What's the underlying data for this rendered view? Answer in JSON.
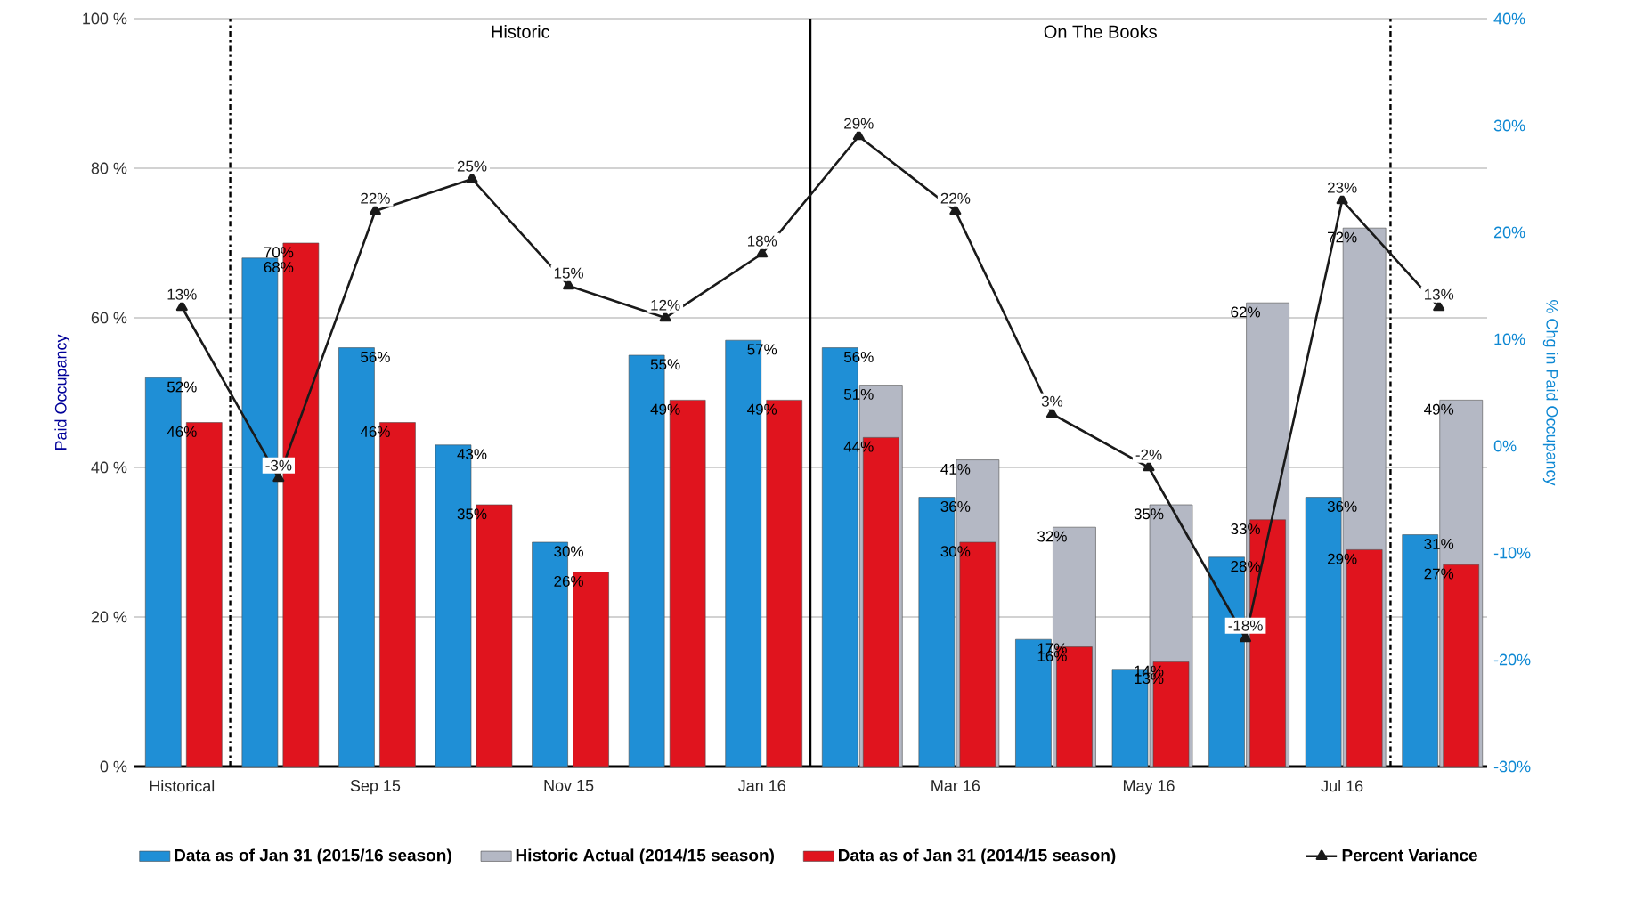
{
  "chart_data": {
    "type": "bar",
    "ylabel": "Paid Occupancy",
    "y2label": "% Chg in Paid Occupancy",
    "categories": [
      "Historical",
      null,
      "Sep 15",
      null,
      "Nov 15",
      null,
      "Jan 16",
      null,
      "Mar 16",
      null,
      "May 16",
      null,
      "Jul 16",
      null
    ],
    "series": [
      {
        "name": "Data as of Jan 31 (2015/16 season)",
        "color": "#1f8fd6",
        "values": [
          52,
          68,
          56,
          43,
          30,
          55,
          57,
          56,
          36,
          17,
          13,
          28,
          36,
          31
        ],
        "value_labels": [
          "52%",
          "68%",
          "56%",
          "43%",
          "30%",
          "55%",
          "57%",
          "56%",
          "36%",
          "17%",
          "13%",
          "28%",
          "36%",
          "31%"
        ]
      },
      {
        "name": "Historic Actual (2014/15 season)",
        "color": "#b4b8c4",
        "values": [
          null,
          null,
          null,
          null,
          null,
          null,
          null,
          51,
          41,
          32,
          35,
          62,
          72,
          49
        ],
        "value_labels": [
          null,
          null,
          null,
          null,
          null,
          null,
          null,
          "51%",
          "41%",
          "32%",
          "35%",
          "62%",
          "72%",
          "49%"
        ]
      },
      {
        "name": "Data as of Jan 31 (2014/15 season)",
        "color": "#e0141e",
        "values": [
          46,
          70,
          46,
          35,
          26,
          49,
          49,
          44,
          30,
          16,
          14,
          33,
          29,
          27
        ],
        "value_labels": [
          "46%",
          "70%",
          "46%",
          "35%",
          "26%",
          "49%",
          "49%",
          "44%",
          "30%",
          "16%",
          "14%",
          "33%",
          "29%",
          "27%"
        ]
      },
      {
        "name": "Percent Variance",
        "type": "line",
        "axis": "y2",
        "color": "#1a1a1a",
        "values": [
          13,
          -3,
          22,
          25,
          15,
          12,
          18,
          29,
          22,
          3,
          -2,
          -18,
          23,
          13
        ],
        "value_labels": [
          "13%",
          "-3%",
          "22%",
          "25%",
          "15%",
          "12%",
          "18%",
          "29%",
          "22%",
          "3%",
          "-2%",
          "-18%",
          "23%",
          "13%"
        ]
      }
    ],
    "ylim": [
      0,
      100
    ],
    "yticks": [
      {
        "value": 0,
        "label": "0 %"
      },
      {
        "value": 20,
        "label": "20 %"
      },
      {
        "value": 40,
        "label": "40 %"
      },
      {
        "value": 60,
        "label": "60 %"
      },
      {
        "value": 80,
        "label": "80 %"
      },
      {
        "value": 100,
        "label": "100 %"
      }
    ],
    "y2lim": [
      -30,
      40
    ],
    "y2ticks": [
      {
        "value": -30,
        "label": "-30%"
      },
      {
        "value": -20,
        "label": "-20%"
      },
      {
        "value": -10,
        "label": "-10%"
      },
      {
        "value": 0,
        "label": "0%"
      },
      {
        "value": 10,
        "label": "10%"
      },
      {
        "value": 20,
        "label": "20%"
      },
      {
        "value": 30,
        "label": "30%"
      },
      {
        "value": 40,
        "label": "40%"
      }
    ],
    "annotations": [
      "Historic",
      "On The Books"
    ],
    "grid": "y",
    "legend": "bottom",
    "marker": "triangle",
    "line_style": "solid"
  }
}
